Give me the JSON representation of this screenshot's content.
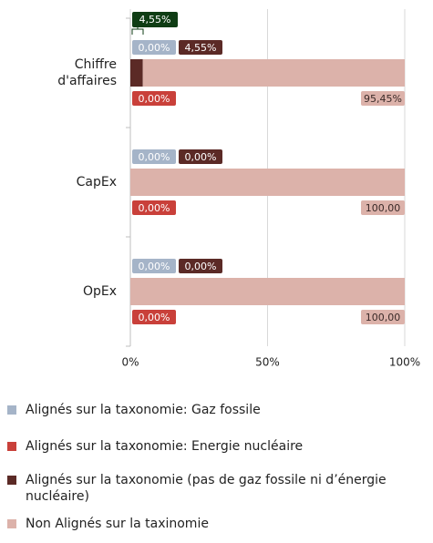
{
  "chart_data": {
    "type": "stacked-bar-horizontal",
    "categories": [
      "Chiffre d'affaires",
      "CapEx",
      "OpEx"
    ],
    "series": [
      {
        "name": "Alignés sur la taxonomie: Gaz fossile",
        "color": "#a5b4c8",
        "text_color": "#ffffff",
        "values": [
          0,
          0,
          0
        ],
        "value_labels": [
          "0,00%",
          "0,00%",
          "0,00%"
        ]
      },
      {
        "name": "Alignés sur la taxonomie: Energie nucléaire",
        "color": "#c9403a",
        "text_color": "#ffffff",
        "values": [
          0,
          0,
          0
        ],
        "value_labels": [
          "0,00%",
          "0,00%",
          "0,00%"
        ]
      },
      {
        "name": "Alignés sur la taxonomie (pas de gaz fossile ni d’énergie nucléaire)",
        "color": "#5b2a26",
        "text_color": "#ffffff",
        "values": [
          4.55,
          0,
          0
        ],
        "value_labels": [
          "4,55%",
          "0,00%",
          "0,00%"
        ]
      },
      {
        "name": "Non Alignés sur la taxinomie",
        "color": "#dcb2aa",
        "text_color": "#3a2a28",
        "values": [
          95.45,
          100,
          100
        ],
        "value_labels": [
          "95,45%",
          "100,00",
          "100,00"
        ]
      }
    ],
    "annotations": [
      "4,55%"
    ],
    "xlim": [
      0,
      100
    ],
    "xticks": [
      {
        "value": 0,
        "label": "0%"
      },
      {
        "value": 50,
        "label": "50%"
      },
      {
        "value": 100,
        "label": "100%"
      }
    ],
    "grid": true
  }
}
